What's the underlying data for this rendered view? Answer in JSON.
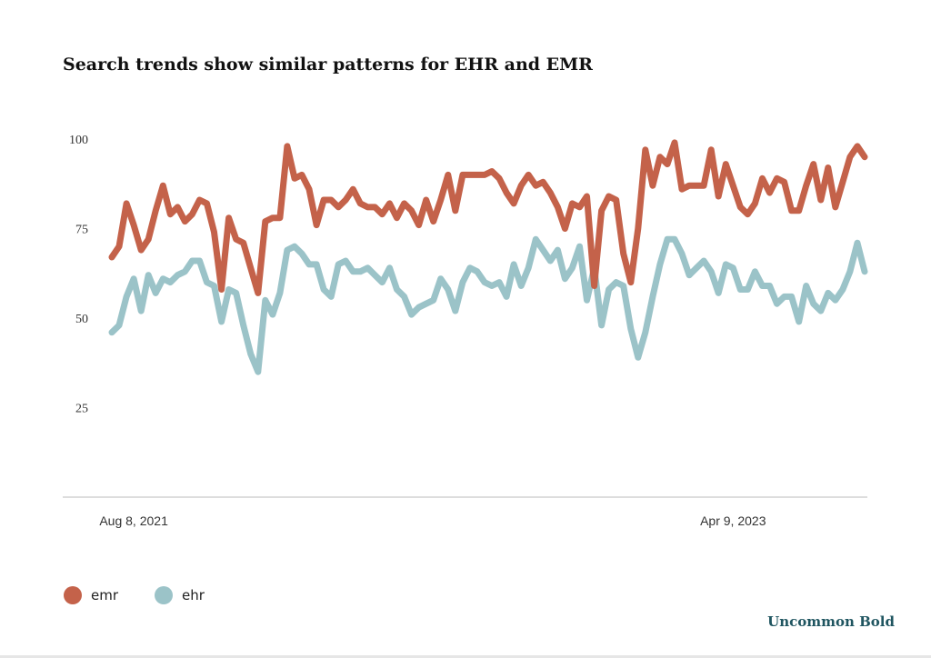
{
  "chart_data": {
    "type": "line",
    "title": "Search trends show similar patterns for EHR and EMR",
    "xlabel": "",
    "ylabel": "",
    "ylim": [
      0,
      100
    ],
    "y_ticks": [
      "100",
      "75",
      "50",
      "25"
    ],
    "x_tick_labels": [
      {
        "label": "Aug 8, 2021",
        "index": 3
      },
      {
        "label": "Apr 9, 2023",
        "index": 85
      }
    ],
    "legend": [
      "emr",
      "ehr"
    ],
    "series": [
      {
        "name": "emr",
        "color": "#c4624a",
        "values": [
          67,
          70,
          82,
          76,
          69,
          72,
          80,
          87,
          79,
          81,
          77,
          79,
          83,
          82,
          74,
          58,
          78,
          72,
          71,
          64,
          57,
          77,
          78,
          78,
          98,
          89,
          90,
          86,
          76,
          83,
          83,
          81,
          83,
          86,
          82,
          81,
          81,
          79,
          82,
          78,
          82,
          80,
          76,
          83,
          77,
          83,
          90,
          80,
          90,
          90,
          90,
          90,
          91,
          89,
          85,
          82,
          87,
          90,
          87,
          88,
          85,
          81,
          75,
          82,
          81,
          84,
          59,
          80,
          84,
          83,
          68,
          60,
          75,
          97,
          87,
          95,
          93,
          99,
          86,
          87,
          87,
          87,
          97,
          84,
          93,
          87,
          81,
          79,
          82,
          89,
          85,
          89,
          88,
          80,
          80,
          87,
          93,
          83,
          92,
          81,
          88,
          95,
          98,
          95
        ]
      },
      {
        "name": "ehr",
        "color": "#9bc3c8",
        "values": [
          46,
          48,
          56,
          61,
          52,
          62,
          57,
          61,
          60,
          62,
          63,
          66,
          66,
          60,
          59,
          49,
          58,
          57,
          48,
          40,
          35,
          55,
          51,
          57,
          69,
          70,
          68,
          65,
          65,
          58,
          56,
          65,
          66,
          63,
          63,
          64,
          62,
          60,
          64,
          58,
          56,
          51,
          53,
          54,
          55,
          61,
          58,
          52,
          60,
          64,
          63,
          60,
          59,
          60,
          56,
          65,
          59,
          64,
          72,
          69,
          66,
          69,
          61,
          64,
          70,
          55,
          64,
          48,
          58,
          60,
          59,
          47,
          39,
          46,
          56,
          65,
          72,
          72,
          68,
          62,
          64,
          66,
          63,
          57,
          65,
          64,
          58,
          58,
          63,
          59,
          59,
          54,
          56,
          56,
          49,
          59,
          54,
          52,
          57,
          55,
          58,
          63,
          71,
          63
        ]
      }
    ]
  },
  "footer": {
    "brand": "Uncommon Bold"
  },
  "colors": {
    "accent": "#1f5560",
    "axis": "#bbbbbb"
  }
}
